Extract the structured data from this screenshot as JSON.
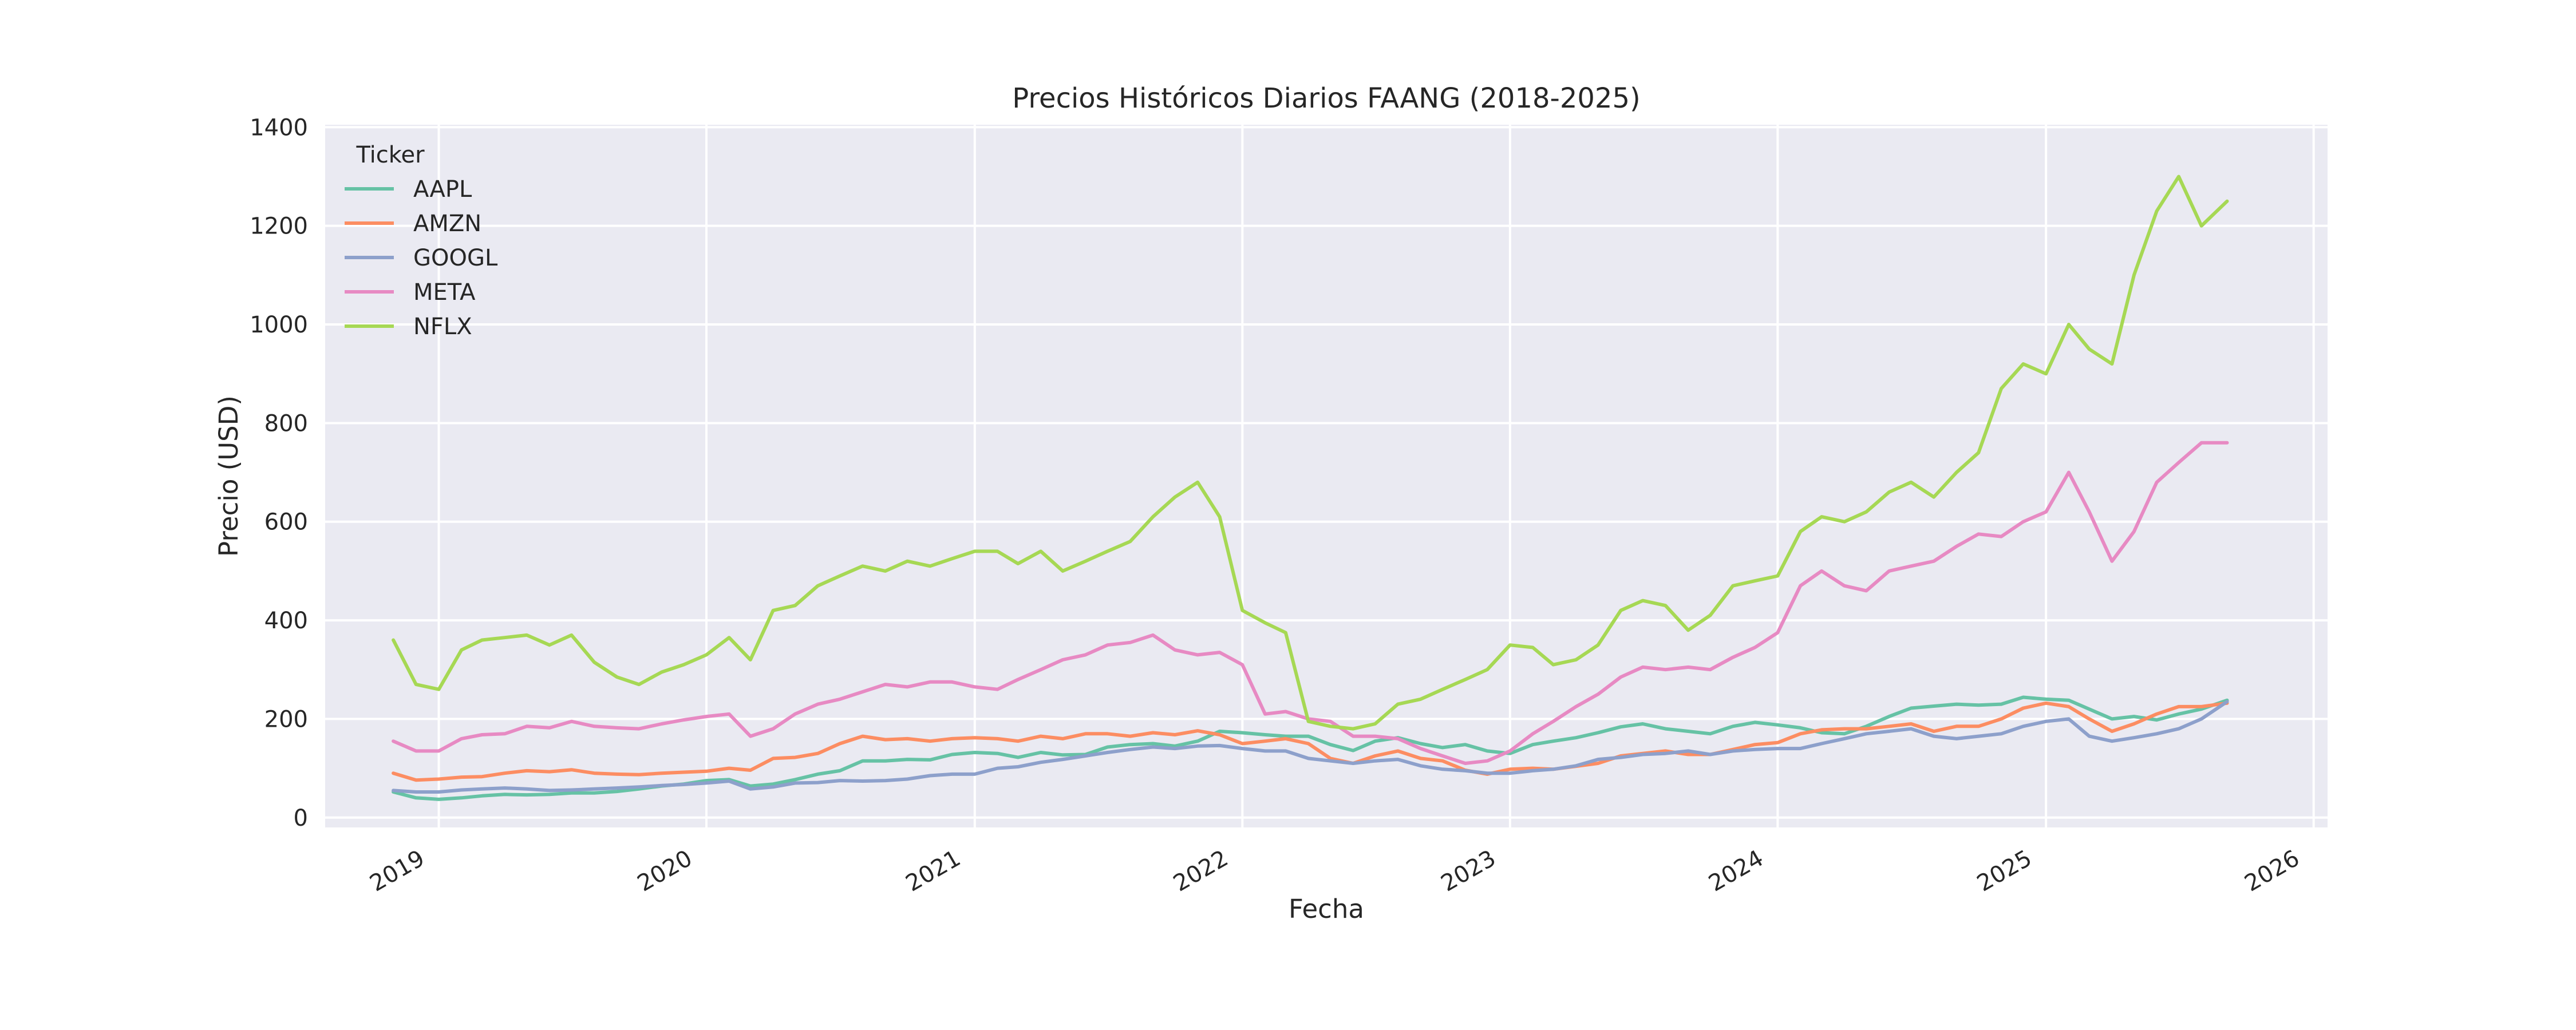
{
  "chart_data": {
    "type": "line",
    "title": "Precios Históricos Diarios FAANG (2018-2025)",
    "xlabel": "Fecha",
    "ylabel": "Precio (USD)",
    "ylim": [
      -20,
      1405
    ],
    "xlim": [
      "2018-07-30",
      "2026-01-20"
    ],
    "grid": true,
    "legend": {
      "title": "Ticker",
      "placement": "top-left"
    },
    "x_ticks": [
      "2019-01-01",
      "2020-01-01",
      "2021-01-01",
      "2022-01-01",
      "2023-01-01",
      "2024-01-01",
      "2025-01-01",
      "2026-01-01"
    ],
    "x_tick_labels": [
      "2019",
      "2020",
      "2021",
      "2022",
      "2023",
      "2024",
      "2025",
      "2026"
    ],
    "y_ticks": [
      0,
      200,
      400,
      600,
      800,
      1000,
      1200,
      1400
    ],
    "y_tick_labels": [
      "0",
      "200",
      "400",
      "600",
      "800",
      "1000",
      "1200",
      "1400"
    ],
    "x": [
      "2018-10-31",
      "2018-12-01",
      "2019-01-01",
      "2019-02-01",
      "2019-03-01",
      "2019-04-01",
      "2019-05-01",
      "2019-06-01",
      "2019-07-01",
      "2019-08-01",
      "2019-09-01",
      "2019-10-01",
      "2019-11-01",
      "2019-12-01",
      "2020-01-01",
      "2020-02-01",
      "2020-03-01",
      "2020-04-01",
      "2020-05-01",
      "2020-06-01",
      "2020-07-01",
      "2020-08-01",
      "2020-09-01",
      "2020-10-01",
      "2020-11-01",
      "2020-12-01",
      "2021-01-01",
      "2021-02-01",
      "2021-03-01",
      "2021-04-01",
      "2021-05-01",
      "2021-06-01",
      "2021-07-01",
      "2021-08-01",
      "2021-09-01",
      "2021-10-01",
      "2021-11-01",
      "2021-12-01",
      "2022-01-01",
      "2022-02-01",
      "2022-03-01",
      "2022-04-01",
      "2022-05-01",
      "2022-06-01",
      "2022-07-01",
      "2022-08-01",
      "2022-09-01",
      "2022-10-01",
      "2022-11-01",
      "2022-12-01",
      "2023-01-01",
      "2023-02-01",
      "2023-03-01",
      "2023-04-01",
      "2023-05-01",
      "2023-06-01",
      "2023-07-01",
      "2023-08-01",
      "2023-09-01",
      "2023-10-01",
      "2023-11-01",
      "2023-12-01",
      "2024-01-01",
      "2024-02-01",
      "2024-03-01",
      "2024-04-01",
      "2024-05-01",
      "2024-06-01",
      "2024-07-01",
      "2024-08-01",
      "2024-09-01",
      "2024-10-01",
      "2024-11-01",
      "2024-12-01",
      "2025-01-01",
      "2025-02-01",
      "2025-03-01",
      "2025-04-01",
      "2025-05-01",
      "2025-06-01",
      "2025-07-01",
      "2025-08-01",
      "2025-09-05"
    ],
    "series": [
      {
        "name": "AAPL",
        "color": "#66c2a5",
        "values": [
          52,
          40,
          37,
          40,
          44,
          47,
          46,
          47,
          50,
          50,
          53,
          58,
          64,
          68,
          75,
          77,
          64,
          68,
          77,
          88,
          95,
          115,
          115,
          118,
          117,
          128,
          132,
          130,
          122,
          132,
          127,
          128,
          143,
          148,
          150,
          145,
          155,
          175,
          172,
          168,
          165,
          165,
          148,
          136,
          155,
          162,
          150,
          142,
          148,
          135,
          130,
          148,
          155,
          162,
          172,
          184,
          190,
          180,
          175,
          170,
          185,
          193,
          188,
          182,
          172,
          170,
          185,
          205,
          222,
          226,
          230,
          228,
          230,
          244,
          240,
          238,
          220,
          200,
          205,
          198,
          210,
          220,
          238
        ]
      },
      {
        "name": "AMZN",
        "color": "#fc8d62",
        "values": [
          90,
          76,
          78,
          82,
          83,
          90,
          95,
          93,
          97,
          90,
          88,
          87,
          90,
          92,
          94,
          100,
          96,
          120,
          122,
          130,
          150,
          165,
          158,
          160,
          155,
          160,
          162,
          160,
          155,
          165,
          160,
          170,
          170,
          165,
          172,
          168,
          176,
          168,
          150,
          155,
          160,
          150,
          120,
          110,
          125,
          135,
          120,
          115,
          96,
          88,
          98,
          100,
          98,
          104,
          110,
          125,
          130,
          135,
          128,
          128,
          138,
          148,
          152,
          170,
          178,
          180,
          180,
          185,
          190,
          175,
          185,
          185,
          200,
          222,
          232,
          225,
          200,
          175,
          190,
          210,
          225,
          225,
          232
        ]
      },
      {
        "name": "GOOGL",
        "color": "#8da0cb",
        "values": [
          55,
          52,
          52,
          56,
          58,
          60,
          58,
          55,
          56,
          58,
          60,
          62,
          65,
          67,
          70,
          74,
          58,
          62,
          70,
          71,
          75,
          74,
          75,
          78,
          85,
          88,
          88,
          100,
          103,
          112,
          118,
          125,
          132,
          138,
          143,
          140,
          145,
          146,
          140,
          135,
          135,
          120,
          115,
          110,
          115,
          118,
          105,
          98,
          95,
          90,
          90,
          95,
          98,
          105,
          118,
          122,
          128,
          130,
          135,
          128,
          135,
          138,
          140,
          140,
          150,
          160,
          170,
          175,
          180,
          165,
          160,
          165,
          170,
          185,
          195,
          200,
          165,
          155,
          162,
          170,
          180,
          200,
          235
        ]
      },
      {
        "name": "META",
        "color": "#e78ac3",
        "values": [
          155,
          135,
          135,
          160,
          168,
          170,
          185,
          182,
          195,
          185,
          182,
          180,
          190,
          198,
          205,
          210,
          165,
          180,
          210,
          230,
          240,
          255,
          270,
          265,
          275,
          275,
          265,
          260,
          280,
          300,
          320,
          330,
          350,
          355,
          370,
          340,
          330,
          335,
          310,
          210,
          215,
          200,
          195,
          165,
          165,
          160,
          140,
          125,
          110,
          115,
          135,
          170,
          195,
          225,
          250,
          285,
          305,
          300,
          305,
          300,
          325,
          345,
          375,
          470,
          500,
          470,
          460,
          500,
          510,
          520,
          550,
          575,
          570,
          600,
          620,
          700,
          620,
          520,
          580,
          680,
          720,
          760,
          760
        ]
      },
      {
        "name": "NFLX",
        "color": "#a6d854",
        "values": [
          360,
          270,
          260,
          340,
          360,
          365,
          370,
          350,
          370,
          315,
          285,
          270,
          295,
          310,
          330,
          365,
          320,
          420,
          430,
          470,
          490,
          510,
          500,
          520,
          510,
          525,
          540,
          540,
          515,
          540,
          500,
          520,
          540,
          560,
          610,
          650,
          680,
          610,
          420,
          395,
          375,
          195,
          185,
          180,
          190,
          230,
          240,
          260,
          280,
          300,
          350,
          345,
          310,
          320,
          350,
          420,
          440,
          430,
          380,
          410,
          470,
          480,
          490,
          580,
          610,
          600,
          620,
          660,
          680,
          650,
          700,
          740,
          870,
          920,
          900,
          1000,
          950,
          920,
          1100,
          1230,
          1300,
          1200,
          1250
        ]
      }
    ]
  }
}
